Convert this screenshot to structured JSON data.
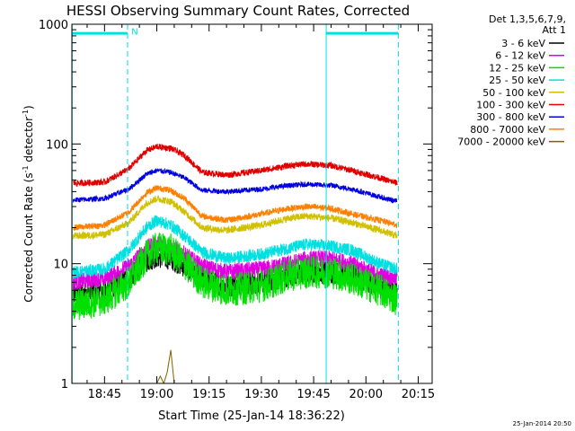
{
  "chart_data": {
    "type": "line",
    "title": "HESSI Observing Summary Count Rates, Corrected",
    "xlabel": "Start Time (25-Jan-14 18:36:22)",
    "ylabel_main": "Corrected Count Rate (s",
    "ylabel_sup1": "-1",
    "ylabel_mid": " detector",
    "ylabel_sup2": "-1",
    "ylabel_end": ")",
    "footer": "25-Jan-2014 20:50",
    "x_range_minutes": [
      -4.37,
      99.0
    ],
    "x_ticks": [
      {
        "label": "18:45",
        "minutes": 5
      },
      {
        "label": "19:00",
        "minutes": 20
      },
      {
        "label": "19:15",
        "minutes": 35
      },
      {
        "label": "19:30",
        "minutes": 50
      },
      {
        "label": "19:45",
        "minutes": 65
      },
      {
        "label": "20:00",
        "minutes": 80
      },
      {
        "label": "20:15",
        "minutes": 95
      }
    ],
    "y_scale": "log",
    "ylim": [
      1,
      1000
    ],
    "y_ticks": [
      {
        "label": "1",
        "value": 1
      },
      {
        "label": "10",
        "value": 10
      },
      {
        "label": "100",
        "value": 100
      },
      {
        "label": "1000",
        "value": 1000
      }
    ],
    "legend": {
      "placement": "right",
      "header1": "Det 1,3,5,6,7,9,",
      "header2": "Att 1"
    },
    "series": [
      {
        "name": "3 - 6 keV",
        "color": "#000000",
        "noise": 0.22,
        "points": [
          [
            -4,
            5.5
          ],
          [
            5,
            6
          ],
          [
            12,
            7.5
          ],
          [
            17,
            10.5
          ],
          [
            20,
            11.5
          ],
          [
            24,
            11
          ],
          [
            28,
            9.5
          ],
          [
            33,
            7.5
          ],
          [
            40,
            6.5
          ],
          [
            50,
            7
          ],
          [
            58,
            8
          ],
          [
            63,
            8.5
          ],
          [
            70,
            8.5
          ],
          [
            76,
            8
          ],
          [
            84,
            6.5
          ],
          [
            89,
            5.8
          ]
        ]
      },
      {
        "name": "6 - 12 keV",
        "color": "#e000e0",
        "noise": 0.16,
        "points": [
          [
            -4,
            7
          ],
          [
            5,
            7.5
          ],
          [
            12,
            9.5
          ],
          [
            17,
            13.5
          ],
          [
            20,
            15
          ],
          [
            24,
            14
          ],
          [
            28,
            12
          ],
          [
            33,
            9.5
          ],
          [
            40,
            8.5
          ],
          [
            50,
            9
          ],
          [
            58,
            10
          ],
          [
            63,
            11
          ],
          [
            70,
            11
          ],
          [
            76,
            10
          ],
          [
            84,
            8
          ],
          [
            89,
            7.5
          ]
        ]
      },
      {
        "name": "12 - 25 keV",
        "color": "#00e000",
        "noise": 0.32,
        "points": [
          [
            -4,
            4.5
          ],
          [
            5,
            5
          ],
          [
            12,
            7
          ],
          [
            17,
            11.5
          ],
          [
            20,
            13.5
          ],
          [
            24,
            13
          ],
          [
            28,
            10
          ],
          [
            33,
            7
          ],
          [
            40,
            6
          ],
          [
            50,
            6.5
          ],
          [
            58,
            8
          ],
          [
            63,
            8.5
          ],
          [
            70,
            8.5
          ],
          [
            76,
            7.5
          ],
          [
            84,
            6
          ],
          [
            89,
            5
          ]
        ]
      },
      {
        "name": "25 - 50 keV",
        "color": "#00e0e0",
        "noise": 0.12,
        "points": [
          [
            -4,
            8.5
          ],
          [
            5,
            9
          ],
          [
            12,
            13
          ],
          [
            17,
            20
          ],
          [
            20,
            23
          ],
          [
            24,
            21
          ],
          [
            28,
            17
          ],
          [
            33,
            12.5
          ],
          [
            40,
            11
          ],
          [
            50,
            12
          ],
          [
            58,
            13.5
          ],
          [
            63,
            14.5
          ],
          [
            70,
            14
          ],
          [
            76,
            13
          ],
          [
            84,
            10
          ],
          [
            89,
            9
          ]
        ]
      },
      {
        "name": "50 - 100 keV",
        "color": "#d0c000",
        "noise": 0.07,
        "points": [
          [
            -4,
            17
          ],
          [
            5,
            17.5
          ],
          [
            12,
            22
          ],
          [
            17,
            32
          ],
          [
            20,
            35
          ],
          [
            24,
            33
          ],
          [
            28,
            27
          ],
          [
            33,
            20
          ],
          [
            40,
            19
          ],
          [
            50,
            21
          ],
          [
            58,
            24
          ],
          [
            63,
            25
          ],
          [
            70,
            24
          ],
          [
            76,
            22
          ],
          [
            84,
            19
          ],
          [
            89,
            17
          ]
        ]
      },
      {
        "name": "100 - 300 keV",
        "color": "#e00000",
        "noise": 0.06,
        "points": [
          [
            -4,
            47
          ],
          [
            5,
            48
          ],
          [
            12,
            62
          ],
          [
            17,
            88
          ],
          [
            20,
            95
          ],
          [
            24,
            92
          ],
          [
            28,
            80
          ],
          [
            33,
            58
          ],
          [
            40,
            55
          ],
          [
            50,
            60
          ],
          [
            58,
            66
          ],
          [
            63,
            68
          ],
          [
            70,
            66
          ],
          [
            76,
            60
          ],
          [
            84,
            52
          ],
          [
            89,
            47
          ]
        ]
      },
      {
        "name": "300 - 800 keV",
        "color": "#0000e0",
        "noise": 0.05,
        "points": [
          [
            -4,
            34
          ],
          [
            5,
            35
          ],
          [
            12,
            42
          ],
          [
            17,
            56
          ],
          [
            20,
            60
          ],
          [
            24,
            58
          ],
          [
            28,
            52
          ],
          [
            33,
            41
          ],
          [
            40,
            40
          ],
          [
            50,
            42
          ],
          [
            58,
            45
          ],
          [
            63,
            46
          ],
          [
            70,
            45
          ],
          [
            76,
            42
          ],
          [
            84,
            36
          ],
          [
            89,
            33
          ]
        ]
      },
      {
        "name": "800 - 7000 keV",
        "color": "#ff8000",
        "noise": 0.06,
        "points": [
          [
            -4,
            20
          ],
          [
            5,
            21
          ],
          [
            12,
            27
          ],
          [
            17,
            39
          ],
          [
            20,
            43
          ],
          [
            24,
            41
          ],
          [
            28,
            35
          ],
          [
            33,
            25
          ],
          [
            40,
            23
          ],
          [
            50,
            26
          ],
          [
            58,
            29
          ],
          [
            63,
            30
          ],
          [
            70,
            29
          ],
          [
            76,
            26
          ],
          [
            84,
            23
          ],
          [
            89,
            21
          ]
        ]
      },
      {
        "name": "7000 - 20000 keV",
        "color": "#806000",
        "noise": 0,
        "points": [
          [
            -4,
            1
          ],
          [
            20,
            1
          ],
          [
            21,
            1.15
          ],
          [
            22,
            1
          ],
          [
            23,
            1.25
          ],
          [
            24,
            1.9
          ],
          [
            25,
            1
          ],
          [
            89,
            1
          ]
        ]
      }
    ],
    "vertical_lines": [
      {
        "minutes": -4.3,
        "color": "#00e0e0",
        "style": "solid"
      },
      {
        "minutes": 11.6,
        "color": "#00e0e0",
        "style": "dashed"
      },
      {
        "minutes": 68.6,
        "color": "#00e0e0",
        "style": "solid"
      },
      {
        "minutes": 89.3,
        "color": "#00e0e0",
        "style": "dashed"
      }
    ],
    "top_bars": [
      {
        "from": -4.3,
        "to": 11.6,
        "value": 840,
        "color": "#00e0e0"
      },
      {
        "from": 68.6,
        "to": 89.3,
        "value": 840,
        "color": "#00e0e0"
      }
    ],
    "annotations": [
      {
        "text": "N",
        "minutes": 12.7,
        "value": 880,
        "color": "#00e0e0"
      }
    ]
  }
}
